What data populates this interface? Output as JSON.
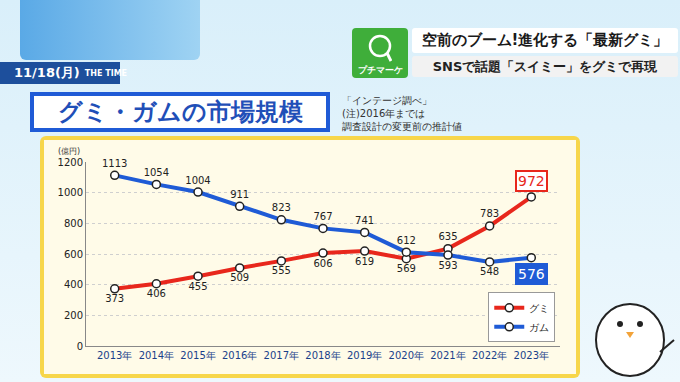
{
  "header": {
    "date": "11/18(月)",
    "program": "THE TIME",
    "corner": "プチマーケ",
    "headline": "空前のブーム!進化する「最新グミ」",
    "subheadline": "SNSで話題「スイミー」をグミで再現"
  },
  "chart_data": {
    "type": "line",
    "title": "グミ・ガムの市場規模",
    "notes": [
      "「インテージ調べ」",
      "(注)2016年までは",
      "調査設計の変更前の推計値"
    ],
    "ylabel": "(億円)",
    "categories": [
      "2013年",
      "2014年",
      "2015年",
      "2016年",
      "2017年",
      "2018年",
      "2019年",
      "2020年",
      "2021年",
      "2022年",
      "2023年"
    ],
    "series": [
      {
        "name": "グミ",
        "color": "#e8271c",
        "values": [
          373,
          406,
          455,
          509,
          555,
          606,
          619,
          569,
          635,
          783,
          972
        ]
      },
      {
        "name": "ガム",
        "color": "#1f5bd6",
        "values": [
          1113,
          1054,
          1004,
          911,
          823,
          767,
          741,
          612,
          593,
          548,
          576
        ]
      }
    ],
    "ylim": [
      0,
      1200
    ],
    "yticks": [
      0,
      200,
      400,
      600,
      800,
      1000,
      1200
    ],
    "grid": true,
    "legend": "lower right",
    "data_labels": true,
    "marker": "circle"
  }
}
